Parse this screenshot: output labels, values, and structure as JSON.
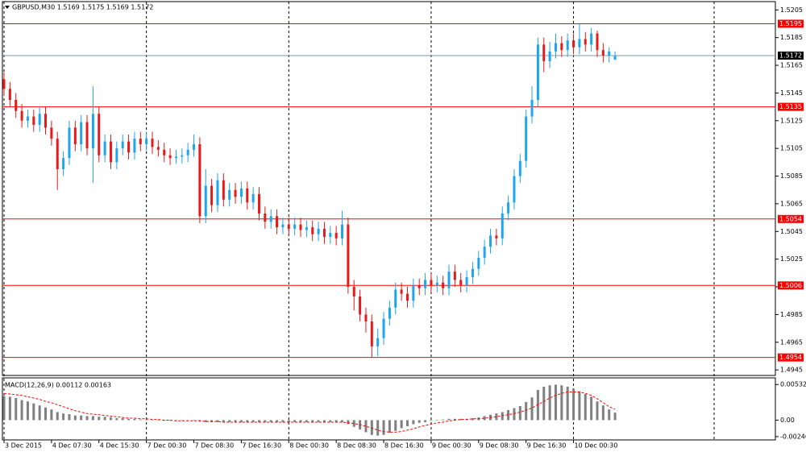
{
  "chart_data": [
    {
      "type": "candlestick",
      "title": "GBPUSD,M30  1.5169 1.5175 1.5169 1.5172",
      "categories": [
        "3 Dec 2015",
        null,
        null,
        null,
        null,
        null,
        null,
        null,
        "4 Dec 07:30",
        null,
        null,
        null,
        null,
        null,
        null,
        null,
        "4 Dec 15:30",
        null,
        null,
        null,
        null,
        null,
        null,
        null,
        "7 Dec 00:30",
        null,
        null,
        null,
        null,
        null,
        null,
        null,
        "7 Dec 08:30",
        null,
        null,
        null,
        null,
        null,
        null,
        null,
        "7 Dec 16:30",
        null,
        null,
        null,
        null,
        null,
        null,
        null,
        "8 Dec 00:30",
        null,
        null,
        null,
        null,
        null,
        null,
        null,
        "8 Dec 08:30",
        null,
        null,
        null,
        null,
        null,
        null,
        null,
        "8 Dec 16:30",
        null,
        null,
        null,
        null,
        null,
        null,
        null,
        "9 Dec 00:30",
        null,
        null,
        null,
        null,
        null,
        null,
        null,
        "9 Dec 08:30",
        null,
        null,
        null,
        null,
        null,
        null,
        null,
        "9 Dec 16:30",
        null,
        null,
        null,
        null,
        null,
        null,
        null,
        "10 Dec 00:30",
        null,
        null,
        null,
        null,
        null,
        null,
        null
      ],
      "open": [
        1.5155,
        1.5148,
        1.514,
        1.5132,
        1.5125,
        1.5128,
        1.5122,
        1.513,
        1.512,
        1.5112,
        1.509,
        1.5098,
        1.512,
        1.5108,
        1.5124,
        1.5105,
        1.513,
        1.51,
        1.511,
        1.5095,
        1.5105,
        1.511,
        1.5102,
        1.5112,
        1.5108,
        1.5112,
        1.5106,
        1.5104,
        1.51,
        1.5098,
        1.5099,
        1.51,
        1.5104,
        1.5108,
        1.5056,
        1.5078,
        1.5064,
        1.5082,
        1.5068,
        1.5075,
        1.507,
        1.5076,
        1.5066,
        1.5072,
        1.5058,
        1.5052,
        1.5056,
        1.5048,
        1.505,
        1.5047,
        1.505,
        1.5046,
        1.5048,
        1.5043,
        1.5047,
        1.5041,
        1.5044,
        1.504,
        1.505,
        1.5005,
        1.4998,
        1.4985,
        1.498,
        1.4962,
        1.4968,
        1.4982,
        1.499,
        1.5003,
        1.5,
        1.4995,
        1.5006,
        1.5004,
        1.501,
        1.5006,
        1.5008,
        1.5004,
        1.5016,
        1.501,
        1.5006,
        1.5012,
        1.5018,
        1.5026,
        1.5034,
        1.5042,
        1.504,
        1.5058,
        1.5066,
        1.5085,
        1.5096,
        1.5128,
        1.514,
        1.518,
        1.5168,
        1.5175,
        1.5181,
        1.5176,
        1.5183,
        1.5178,
        1.5184,
        1.518,
        1.5188,
        1.5176,
        1.5172,
        1.5169
      ],
      "high": [
        1.516,
        1.5153,
        1.5145,
        1.5137,
        1.5133,
        1.5133,
        1.5135,
        1.5135,
        1.5125,
        1.5117,
        1.5103,
        1.5125,
        1.5125,
        1.5129,
        1.5129,
        1.515,
        1.5135,
        1.5115,
        1.5115,
        1.511,
        1.5115,
        1.5115,
        1.5117,
        1.5117,
        1.5117,
        1.5117,
        1.5111,
        1.5109,
        1.5105,
        1.5104,
        1.5105,
        1.5109,
        1.5115,
        1.5113,
        1.509,
        1.5083,
        1.5087,
        1.5087,
        1.508,
        1.508,
        1.5081,
        1.5081,
        1.5077,
        1.5077,
        1.5063,
        1.5061,
        1.5061,
        1.5055,
        1.5055,
        1.5055,
        1.5055,
        1.5053,
        1.5053,
        1.5052,
        1.5052,
        1.5049,
        1.5049,
        1.506,
        1.5055,
        1.501,
        1.5003,
        1.499,
        1.4985,
        1.4975,
        1.4987,
        1.4995,
        1.5008,
        1.5008,
        1.5005,
        1.5011,
        1.5011,
        1.5015,
        1.5015,
        1.5013,
        1.5013,
        1.5021,
        1.5021,
        1.5015,
        1.5017,
        1.5023,
        1.5031,
        1.5039,
        1.5047,
        1.5047,
        1.5063,
        1.5071,
        1.509,
        1.5101,
        1.5133,
        1.515,
        1.5185,
        1.5185,
        1.5182,
        1.5188,
        1.5186,
        1.5188,
        1.5188,
        1.5195,
        1.5189,
        1.5192,
        1.519,
        1.5181,
        1.5178,
        1.5175
      ],
      "low": [
        1.5143,
        1.5135,
        1.5127,
        1.512,
        1.512,
        1.5117,
        1.5117,
        1.5115,
        1.5107,
        1.5075,
        1.5085,
        1.5093,
        1.5103,
        1.5103,
        1.51,
        1.508,
        1.5095,
        1.5095,
        1.509,
        1.509,
        1.51,
        1.5097,
        1.5097,
        1.5103,
        1.5103,
        1.5101,
        1.5099,
        1.5095,
        1.5093,
        1.5094,
        1.5094,
        1.5095,
        1.5099,
        1.5051,
        1.5051,
        1.5059,
        1.5059,
        1.5063,
        1.5063,
        1.5065,
        1.5065,
        1.5061,
        1.5061,
        1.5053,
        1.5047,
        1.5047,
        1.5043,
        1.5043,
        1.5042,
        1.5042,
        1.5041,
        1.5041,
        1.5038,
        1.5038,
        1.5036,
        1.5036,
        1.5035,
        1.5035,
        1.5,
        1.4988,
        1.498,
        1.4972,
        1.4954,
        1.4955,
        1.4963,
        1.4977,
        1.4985,
        1.4995,
        1.499,
        1.499,
        1.4999,
        1.4999,
        1.5001,
        1.5001,
        1.4999,
        1.4999,
        1.5005,
        1.5001,
        1.5001,
        1.5007,
        1.5013,
        1.5021,
        1.5029,
        1.5035,
        1.5035,
        1.5053,
        1.5061,
        1.508,
        1.5091,
        1.5123,
        1.5135,
        1.516,
        1.5163,
        1.517,
        1.5171,
        1.5171,
        1.5173,
        1.5173,
        1.5175,
        1.5175,
        1.5171,
        1.5167,
        1.5167,
        1.5169
      ],
      "close": [
        1.5148,
        1.514,
        1.5132,
        1.5125,
        1.5128,
        1.5122,
        1.513,
        1.512,
        1.5112,
        1.509,
        1.5098,
        1.512,
        1.5108,
        1.5124,
        1.5105,
        1.513,
        1.51,
        1.511,
        1.5095,
        1.5105,
        1.511,
        1.5102,
        1.5112,
        1.5108,
        1.5112,
        1.5106,
        1.5104,
        1.51,
        1.5098,
        1.5099,
        1.51,
        1.5104,
        1.5108,
        1.5056,
        1.5078,
        1.5064,
        1.5082,
        1.5068,
        1.5075,
        1.507,
        1.5076,
        1.5066,
        1.5072,
        1.5058,
        1.5052,
        1.5056,
        1.5048,
        1.505,
        1.5047,
        1.505,
        1.5046,
        1.5048,
        1.5043,
        1.5047,
        1.5041,
        1.5044,
        1.504,
        1.505,
        1.5005,
        1.4998,
        1.4985,
        1.498,
        1.4962,
        1.4968,
        1.4982,
        1.499,
        1.5003,
        1.5,
        1.4995,
        1.5006,
        1.5004,
        1.501,
        1.5006,
        1.5008,
        1.5004,
        1.5016,
        1.501,
        1.5006,
        1.5012,
        1.5018,
        1.5026,
        1.5034,
        1.5042,
        1.504,
        1.5058,
        1.5066,
        1.5085,
        1.5096,
        1.5128,
        1.514,
        1.518,
        1.5168,
        1.5175,
        1.5181,
        1.5176,
        1.5183,
        1.5178,
        1.5184,
        1.518,
        1.5188,
        1.5176,
        1.5172,
        1.5175,
        1.5172
      ],
      "up_color": "#1ea5f0",
      "down_color": "#e8191a",
      "ylim": [
        1.4941,
        1.5211
      ],
      "yticks": [
        1.5205,
        1.5185,
        1.5165,
        1.5145,
        1.5125,
        1.5105,
        1.5085,
        1.5065,
        1.5045,
        1.5025,
        1.5005,
        1.4985,
        1.4965,
        1.4945
      ],
      "levels": [
        1.5195,
        1.5135,
        1.5054,
        1.5006,
        1.4954
      ],
      "level_color": "#ff0000",
      "current_price": 1.5172,
      "current_color": "#7d9aa8",
      "grid": true
    },
    {
      "type": "macd",
      "label": "MACD(12,26,9) 0.00112 0.00163",
      "histogram": [
        0.0036,
        0.0035,
        0.0033,
        0.003,
        0.0028,
        0.0025,
        0.0022,
        0.0019,
        0.0016,
        0.0012,
        0.001,
        0.0009,
        0.0007,
        0.0007,
        0.0006,
        0.0006,
        0.0005,
        0.0005,
        0.0004,
        0.0003,
        0.0003,
        0.0002,
        0.0002,
        0.0001,
        0.0001,
        0,
        0,
        -0.0001,
        -0.0001,
        -0.0001,
        -0.0001,
        0,
        0,
        -0.0002,
        -0.0003,
        -0.0003,
        -0.0003,
        -0.0003,
        -0.0003,
        -0.0003,
        -0.0003,
        -0.0003,
        -0.0003,
        -0.0003,
        -0.0003,
        -0.0003,
        -0.0003,
        -0.0003,
        -0.0003,
        -0.0003,
        -0.0003,
        -0.0003,
        -0.0003,
        -0.0003,
        -0.0003,
        -0.0003,
        -0.0003,
        -0.0003,
        -0.0006,
        -0.001,
        -0.0014,
        -0.0018,
        -0.0022,
        -0.0023,
        -0.0022,
        -0.0019,
        -0.0016,
        -0.0012,
        -0.0009,
        -0.0006,
        -0.0004,
        -0.0003,
        -0.0001,
        0,
        0.0001,
        0.0002,
        0.0002,
        0.0002,
        0.0002,
        0.0003,
        0.0004,
        0.0006,
        0.0008,
        0.001,
        0.0012,
        0.0015,
        0.0018,
        0.0021,
        0.0027,
        0.0034,
        0.0045,
        0.005,
        0.0052,
        0.0053,
        0.0052,
        0.005,
        0.0047,
        0.0043,
        0.0039,
        0.0035,
        0.0028,
        0.0022,
        0.0016,
        0.00112
      ],
      "signal": [
        0.004,
        0.0039,
        0.0038,
        0.0037,
        0.0035,
        0.0033,
        0.0031,
        0.0028,
        0.0026,
        0.0023,
        0.002,
        0.0017,
        0.0014,
        0.0012,
        0.001,
        0.0009,
        0.0008,
        0.0007,
        0.0006,
        0.0005,
        0.0004,
        0.0003,
        0.0003,
        0.0002,
        0.0002,
        0.0001,
        0.0001,
        0,
        0,
        -0.0001,
        -0.0001,
        -0.0001,
        -0.0001,
        -0.0001,
        -0.0002,
        -0.0002,
        -0.0002,
        -0.0003,
        -0.0003,
        -0.0003,
        -0.0003,
        -0.0003,
        -0.0003,
        -0.0003,
        -0.0003,
        -0.0003,
        -0.0003,
        -0.0003,
        -0.0003,
        -0.0003,
        -0.0003,
        -0.0003,
        -0.0003,
        -0.0003,
        -0.0003,
        -0.0003,
        -0.0003,
        -0.0003,
        -0.0004,
        -0.0005,
        -0.0007,
        -0.0009,
        -0.0012,
        -0.0015,
        -0.0017,
        -0.0018,
        -0.0018,
        -0.0017,
        -0.0015,
        -0.0013,
        -0.001,
        -0.0008,
        -0.0006,
        -0.0004,
        -0.0003,
        -0.0001,
        0,
        0.0001,
        0.0001,
        0.0002,
        0.0002,
        0.0003,
        0.0004,
        0.0005,
        0.0007,
        0.0008,
        0.001,
        0.0012,
        0.0015,
        0.0018,
        0.0023,
        0.0028,
        0.0033,
        0.0037,
        0.004,
        0.0042,
        0.0042,
        0.0042,
        0.004,
        0.0037,
        0.0032,
        0.0026,
        0.002,
        0.00163
      ],
      "histogram_color": "#808080",
      "signal_color": "#ff0000",
      "ylim": [
        -0.00295,
        0.00631
      ],
      "yticks": [
        0.00532,
        {
          "value": 0,
          "label": "0.00"
        },
        -0.00246
      ]
    }
  ]
}
